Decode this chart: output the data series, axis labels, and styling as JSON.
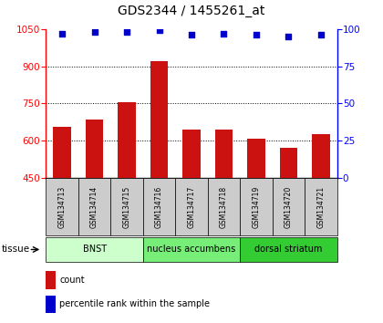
{
  "title": "GDS2344 / 1455261_at",
  "samples": [
    "GSM134713",
    "GSM134714",
    "GSM134715",
    "GSM134716",
    "GSM134717",
    "GSM134718",
    "GSM134719",
    "GSM134720",
    "GSM134721"
  ],
  "counts": [
    655,
    685,
    755,
    920,
    645,
    645,
    607,
    572,
    625
  ],
  "percentile_ranks": [
    97,
    98,
    98,
    99,
    96,
    97,
    96,
    95,
    96
  ],
  "ylim_left": [
    450,
    1050
  ],
  "ylim_right": [
    0,
    100
  ],
  "yticks_left": [
    450,
    600,
    750,
    900,
    1050
  ],
  "yticks_right": [
    0,
    25,
    50,
    75,
    100
  ],
  "tissue_groups": [
    {
      "label": "BNST",
      "start": 0,
      "end": 3,
      "color": "#ccffcc"
    },
    {
      "label": "nucleus accumbens",
      "start": 3,
      "end": 6,
      "color": "#77ee77"
    },
    {
      "label": "dorsal striatum",
      "start": 6,
      "end": 9,
      "color": "#33cc33"
    }
  ],
  "bar_color": "#cc1111",
  "dot_color": "#0000cc",
  "bar_width": 0.55,
  "grid_color": "#000000",
  "bg_color": "#ffffff",
  "label_bg_color": "#cccccc",
  "legend_bar_label": "count",
  "legend_dot_label": "percentile rank within the sample",
  "tissue_label": "tissue"
}
